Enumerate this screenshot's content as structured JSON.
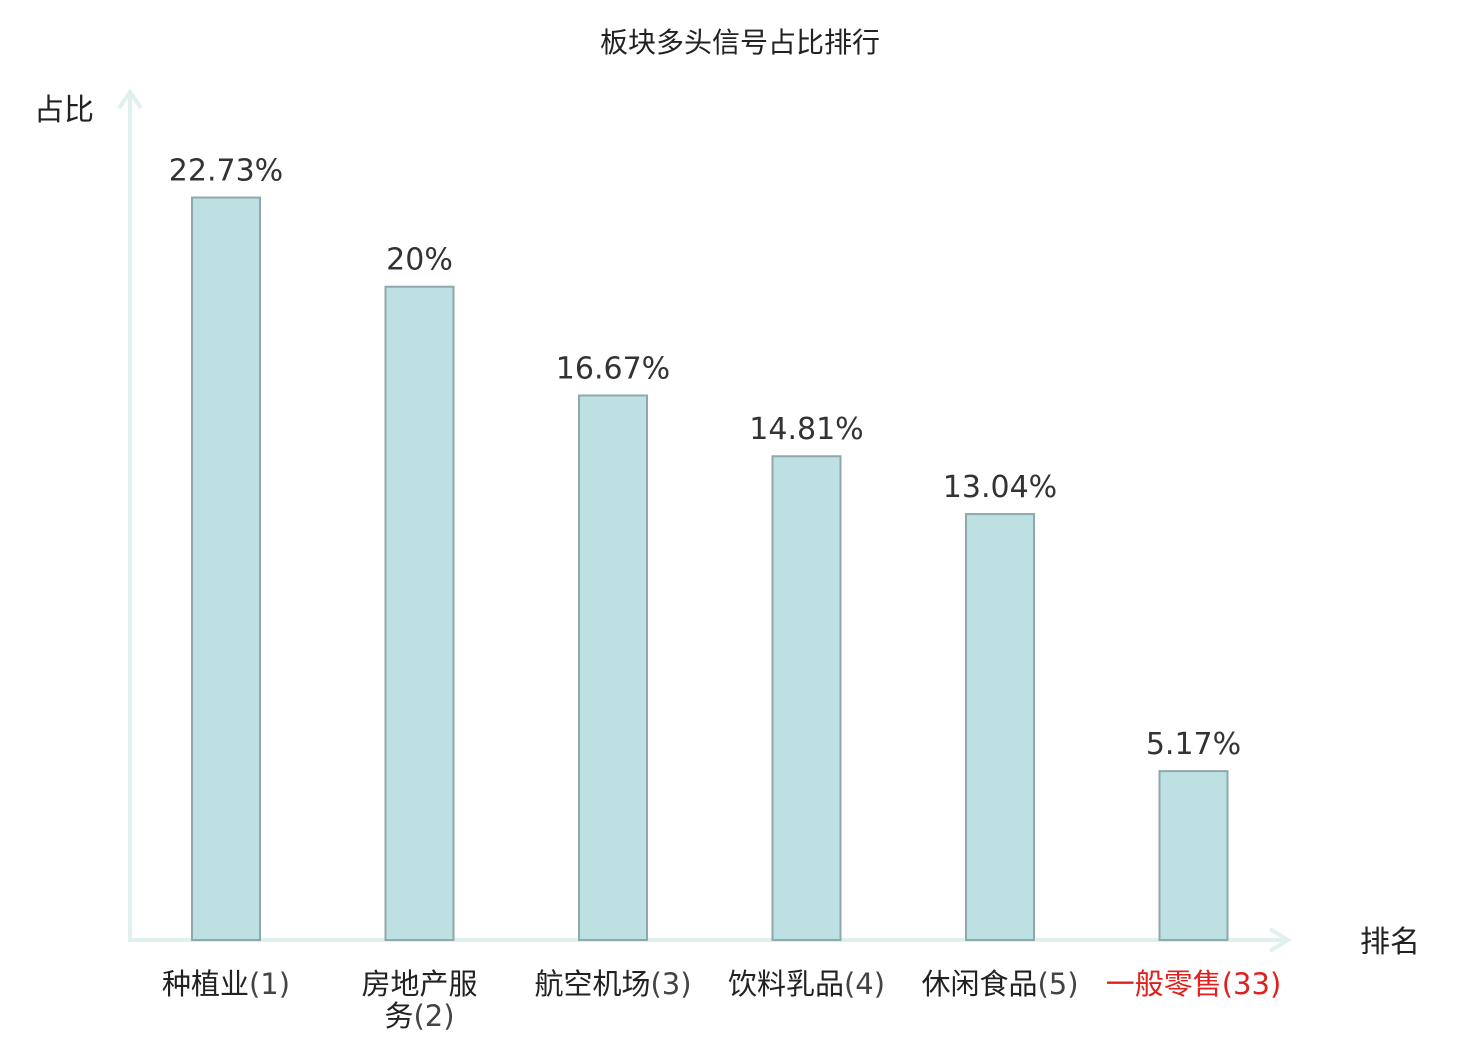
{
  "chart_data": {
    "type": "bar",
    "title": "板块多头信号占比排行",
    "xlabel": "排名",
    "ylabel": "占比",
    "categories": [
      {
        "name": "种植业",
        "rank": "(1)",
        "highlight": false
      },
      {
        "name": "房地产服务",
        "rank": "(2)",
        "highlight": false
      },
      {
        "name": "航空机场",
        "rank": "(3)",
        "highlight": false
      },
      {
        "name": "饮料乳品",
        "rank": "(4)",
        "highlight": false
      },
      {
        "name": "休闲食品",
        "rank": "(5)",
        "highlight": false
      },
      {
        "name": "一般零售",
        "rank": "(33)",
        "highlight": true
      }
    ],
    "values": [
      22.73,
      20,
      16.67,
      14.81,
      13.04,
      5.17
    ],
    "value_labels": [
      "22.73%",
      "20%",
      "16.67%",
      "14.81%",
      "13.04%",
      "5.17%"
    ],
    "ylim": [
      0,
      25.9
    ],
    "grid": false,
    "colors": {
      "bar_fill": "#bde0e2",
      "bar_stroke": "#8fa9aa",
      "axis": "#dff0ee",
      "highlight_text": "#e0201c"
    }
  }
}
